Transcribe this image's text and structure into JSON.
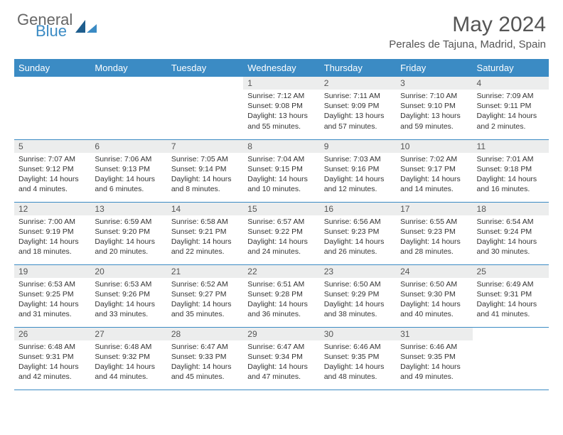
{
  "logo": {
    "text1": "General",
    "text2": "Blue"
  },
  "title": "May 2024",
  "location": "Perales de Tajuna, Madrid, Spain",
  "colors": {
    "header_bg": "#3b8bc4",
    "header_text": "#ffffff",
    "daynum_bg": "#eceded",
    "border": "#3b8bc4",
    "body_text": "#333333",
    "title_text": "#555555"
  },
  "day_headers": [
    "Sunday",
    "Monday",
    "Tuesday",
    "Wednesday",
    "Thursday",
    "Friday",
    "Saturday"
  ],
  "weeks": [
    [
      {
        "n": "",
        "sunrise": "",
        "sunset": "",
        "daylight": ""
      },
      {
        "n": "",
        "sunrise": "",
        "sunset": "",
        "daylight": ""
      },
      {
        "n": "",
        "sunrise": "",
        "sunset": "",
        "daylight": ""
      },
      {
        "n": "1",
        "sunrise": "Sunrise: 7:12 AM",
        "sunset": "Sunset: 9:08 PM",
        "daylight": "Daylight: 13 hours and 55 minutes."
      },
      {
        "n": "2",
        "sunrise": "Sunrise: 7:11 AM",
        "sunset": "Sunset: 9:09 PM",
        "daylight": "Daylight: 13 hours and 57 minutes."
      },
      {
        "n": "3",
        "sunrise": "Sunrise: 7:10 AM",
        "sunset": "Sunset: 9:10 PM",
        "daylight": "Daylight: 13 hours and 59 minutes."
      },
      {
        "n": "4",
        "sunrise": "Sunrise: 7:09 AM",
        "sunset": "Sunset: 9:11 PM",
        "daylight": "Daylight: 14 hours and 2 minutes."
      }
    ],
    [
      {
        "n": "5",
        "sunrise": "Sunrise: 7:07 AM",
        "sunset": "Sunset: 9:12 PM",
        "daylight": "Daylight: 14 hours and 4 minutes."
      },
      {
        "n": "6",
        "sunrise": "Sunrise: 7:06 AM",
        "sunset": "Sunset: 9:13 PM",
        "daylight": "Daylight: 14 hours and 6 minutes."
      },
      {
        "n": "7",
        "sunrise": "Sunrise: 7:05 AM",
        "sunset": "Sunset: 9:14 PM",
        "daylight": "Daylight: 14 hours and 8 minutes."
      },
      {
        "n": "8",
        "sunrise": "Sunrise: 7:04 AM",
        "sunset": "Sunset: 9:15 PM",
        "daylight": "Daylight: 14 hours and 10 minutes."
      },
      {
        "n": "9",
        "sunrise": "Sunrise: 7:03 AM",
        "sunset": "Sunset: 9:16 PM",
        "daylight": "Daylight: 14 hours and 12 minutes."
      },
      {
        "n": "10",
        "sunrise": "Sunrise: 7:02 AM",
        "sunset": "Sunset: 9:17 PM",
        "daylight": "Daylight: 14 hours and 14 minutes."
      },
      {
        "n": "11",
        "sunrise": "Sunrise: 7:01 AM",
        "sunset": "Sunset: 9:18 PM",
        "daylight": "Daylight: 14 hours and 16 minutes."
      }
    ],
    [
      {
        "n": "12",
        "sunrise": "Sunrise: 7:00 AM",
        "sunset": "Sunset: 9:19 PM",
        "daylight": "Daylight: 14 hours and 18 minutes."
      },
      {
        "n": "13",
        "sunrise": "Sunrise: 6:59 AM",
        "sunset": "Sunset: 9:20 PM",
        "daylight": "Daylight: 14 hours and 20 minutes."
      },
      {
        "n": "14",
        "sunrise": "Sunrise: 6:58 AM",
        "sunset": "Sunset: 9:21 PM",
        "daylight": "Daylight: 14 hours and 22 minutes."
      },
      {
        "n": "15",
        "sunrise": "Sunrise: 6:57 AM",
        "sunset": "Sunset: 9:22 PM",
        "daylight": "Daylight: 14 hours and 24 minutes."
      },
      {
        "n": "16",
        "sunrise": "Sunrise: 6:56 AM",
        "sunset": "Sunset: 9:23 PM",
        "daylight": "Daylight: 14 hours and 26 minutes."
      },
      {
        "n": "17",
        "sunrise": "Sunrise: 6:55 AM",
        "sunset": "Sunset: 9:23 PM",
        "daylight": "Daylight: 14 hours and 28 minutes."
      },
      {
        "n": "18",
        "sunrise": "Sunrise: 6:54 AM",
        "sunset": "Sunset: 9:24 PM",
        "daylight": "Daylight: 14 hours and 30 minutes."
      }
    ],
    [
      {
        "n": "19",
        "sunrise": "Sunrise: 6:53 AM",
        "sunset": "Sunset: 9:25 PM",
        "daylight": "Daylight: 14 hours and 31 minutes."
      },
      {
        "n": "20",
        "sunrise": "Sunrise: 6:53 AM",
        "sunset": "Sunset: 9:26 PM",
        "daylight": "Daylight: 14 hours and 33 minutes."
      },
      {
        "n": "21",
        "sunrise": "Sunrise: 6:52 AM",
        "sunset": "Sunset: 9:27 PM",
        "daylight": "Daylight: 14 hours and 35 minutes."
      },
      {
        "n": "22",
        "sunrise": "Sunrise: 6:51 AM",
        "sunset": "Sunset: 9:28 PM",
        "daylight": "Daylight: 14 hours and 36 minutes."
      },
      {
        "n": "23",
        "sunrise": "Sunrise: 6:50 AM",
        "sunset": "Sunset: 9:29 PM",
        "daylight": "Daylight: 14 hours and 38 minutes."
      },
      {
        "n": "24",
        "sunrise": "Sunrise: 6:50 AM",
        "sunset": "Sunset: 9:30 PM",
        "daylight": "Daylight: 14 hours and 40 minutes."
      },
      {
        "n": "25",
        "sunrise": "Sunrise: 6:49 AM",
        "sunset": "Sunset: 9:31 PM",
        "daylight": "Daylight: 14 hours and 41 minutes."
      }
    ],
    [
      {
        "n": "26",
        "sunrise": "Sunrise: 6:48 AM",
        "sunset": "Sunset: 9:31 PM",
        "daylight": "Daylight: 14 hours and 42 minutes."
      },
      {
        "n": "27",
        "sunrise": "Sunrise: 6:48 AM",
        "sunset": "Sunset: 9:32 PM",
        "daylight": "Daylight: 14 hours and 44 minutes."
      },
      {
        "n": "28",
        "sunrise": "Sunrise: 6:47 AM",
        "sunset": "Sunset: 9:33 PM",
        "daylight": "Daylight: 14 hours and 45 minutes."
      },
      {
        "n": "29",
        "sunrise": "Sunrise: 6:47 AM",
        "sunset": "Sunset: 9:34 PM",
        "daylight": "Daylight: 14 hours and 47 minutes."
      },
      {
        "n": "30",
        "sunrise": "Sunrise: 6:46 AM",
        "sunset": "Sunset: 9:35 PM",
        "daylight": "Daylight: 14 hours and 48 minutes."
      },
      {
        "n": "31",
        "sunrise": "Sunrise: 6:46 AM",
        "sunset": "Sunset: 9:35 PM",
        "daylight": "Daylight: 14 hours and 49 minutes."
      },
      {
        "n": "",
        "sunrise": "",
        "sunset": "",
        "daylight": ""
      }
    ]
  ]
}
